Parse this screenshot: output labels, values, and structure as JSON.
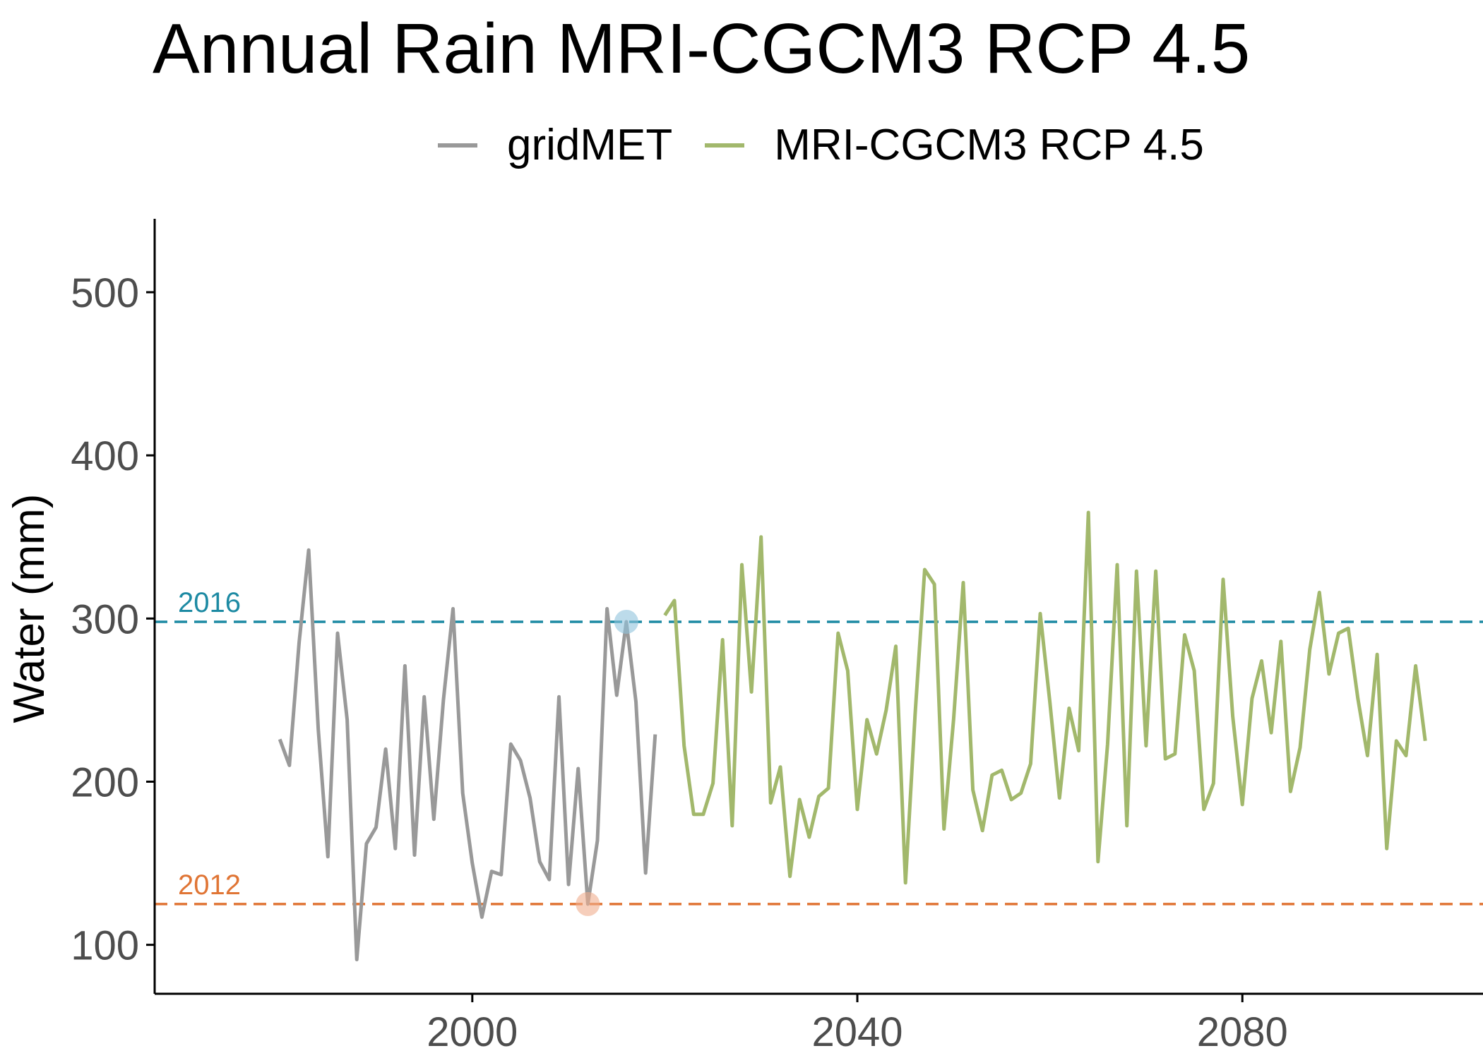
{
  "chart_data": {
    "type": "line",
    "title": "Annual Rain MRI-CGCM3 RCP 4.5",
    "xlabel": "",
    "ylabel": "Water (mm)",
    "xlim": [
      1967,
      2105
    ],
    "ylim": [
      70,
      545
    ],
    "x_ticks": [
      2000,
      2040,
      2080
    ],
    "y_ticks": [
      100,
      200,
      300,
      400,
      500
    ],
    "grid": false,
    "legend_position": "top",
    "series": [
      {
        "name": "gridMET",
        "color": "#999999",
        "points": [
          [
            1980,
            226
          ],
          [
            1981,
            210
          ],
          [
            1982,
            285
          ],
          [
            1983,
            342
          ],
          [
            1984,
            232
          ],
          [
            1985,
            154
          ],
          [
            1986,
            291
          ],
          [
            1987,
            238
          ],
          [
            1988,
            91
          ],
          [
            1989,
            162
          ],
          [
            1990,
            172
          ],
          [
            1991,
            220
          ],
          [
            1992,
            159
          ],
          [
            1993,
            271
          ],
          [
            1994,
            155
          ],
          [
            1995,
            252
          ],
          [
            1996,
            177
          ],
          [
            1997,
            250
          ],
          [
            1998,
            306
          ],
          [
            1999,
            193
          ],
          [
            2000,
            150
          ],
          [
            2001,
            117
          ],
          [
            2002,
            145
          ],
          [
            2003,
            143
          ],
          [
            2004,
            223
          ],
          [
            2005,
            213
          ],
          [
            2006,
            190
          ],
          [
            2007,
            151
          ],
          [
            2008,
            140
          ],
          [
            2009,
            252
          ],
          [
            2010,
            137
          ],
          [
            2011,
            208
          ],
          [
            2012,
            125
          ],
          [
            2013,
            164
          ],
          [
            2014,
            306
          ],
          [
            2015,
            253
          ],
          [
            2016,
            298
          ],
          [
            2017,
            249
          ],
          [
            2018,
            144
          ],
          [
            2019,
            229
          ]
        ]
      },
      {
        "name": "MRI-CGCM3 RCP 4.5",
        "color": "#a2b86c",
        "points": [
          [
            2020,
            302
          ],
          [
            2021,
            311
          ],
          [
            2022,
            222
          ],
          [
            2023,
            180
          ],
          [
            2024,
            180
          ],
          [
            2025,
            199
          ],
          [
            2026,
            287
          ],
          [
            2027,
            173
          ],
          [
            2028,
            333
          ],
          [
            2029,
            255
          ],
          [
            2030,
            350
          ],
          [
            2031,
            187
          ],
          [
            2032,
            209
          ],
          [
            2033,
            142
          ],
          [
            2034,
            189
          ],
          [
            2035,
            166
          ],
          [
            2036,
            191
          ],
          [
            2037,
            196
          ],
          [
            2038,
            291
          ],
          [
            2039,
            268
          ],
          [
            2040,
            183
          ],
          [
            2041,
            238
          ],
          [
            2042,
            217
          ],
          [
            2043,
            244
          ],
          [
            2044,
            283
          ],
          [
            2045,
            138
          ],
          [
            2046,
            241
          ],
          [
            2047,
            330
          ],
          [
            2048,
            321
          ],
          [
            2049,
            171
          ],
          [
            2050,
            238
          ],
          [
            2051,
            322
          ],
          [
            2052,
            195
          ],
          [
            2053,
            170
          ],
          [
            2054,
            204
          ],
          [
            2055,
            207
          ],
          [
            2056,
            189
          ],
          [
            2057,
            193
          ],
          [
            2058,
            211
          ],
          [
            2059,
            303
          ],
          [
            2060,
            249
          ],
          [
            2061,
            190
          ],
          [
            2062,
            245
          ],
          [
            2063,
            219
          ],
          [
            2064,
            365
          ],
          [
            2065,
            151
          ],
          [
            2066,
            223
          ],
          [
            2067,
            333
          ],
          [
            2068,
            173
          ],
          [
            2069,
            329
          ],
          [
            2070,
            222
          ],
          [
            2071,
            329
          ],
          [
            2072,
            214
          ],
          [
            2073,
            217
          ],
          [
            2074,
            290
          ],
          [
            2075,
            268
          ],
          [
            2076,
            183
          ],
          [
            2077,
            199
          ],
          [
            2078,
            324
          ],
          [
            2079,
            240
          ],
          [
            2080,
            186
          ],
          [
            2081,
            251
          ],
          [
            2082,
            274
          ],
          [
            2083,
            230
          ],
          [
            2084,
            286
          ],
          [
            2085,
            194
          ],
          [
            2086,
            221
          ],
          [
            2087,
            281
          ],
          [
            2088,
            316
          ],
          [
            2089,
            266
          ],
          [
            2090,
            291
          ],
          [
            2091,
            294
          ],
          [
            2092,
            251
          ],
          [
            2093,
            216
          ],
          [
            2094,
            278
          ],
          [
            2095,
            159
          ],
          [
            2096,
            225
          ],
          [
            2097,
            216
          ],
          [
            2098,
            271
          ],
          [
            2099,
            225
          ]
        ]
      }
    ],
    "reference_lines": [
      {
        "label": "2016",
        "value": 298,
        "color": "#1d8aa3"
      },
      {
        "label": "2012",
        "value": 125,
        "color": "#e07535"
      }
    ],
    "highlight_points": [
      {
        "x": 2016,
        "y": 298,
        "color": "#8fc3dc"
      },
      {
        "x": 2012,
        "y": 125,
        "color": "#f0ad8e"
      }
    ]
  }
}
